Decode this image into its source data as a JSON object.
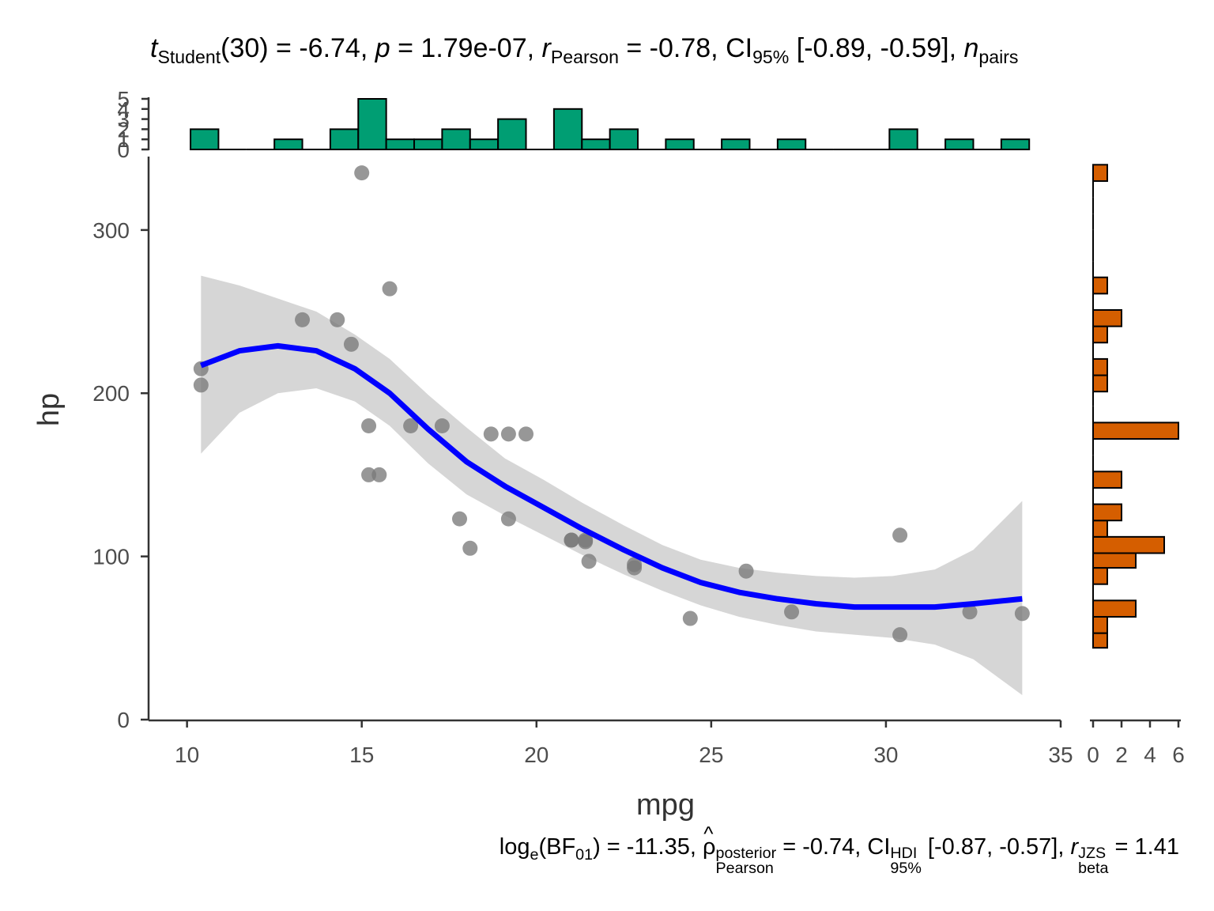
{
  "top_subtitle": {
    "t_symbol": "t",
    "t_sub": "Student",
    "t_stat": "(30) = -6.74, ",
    "p_symbol": "p",
    "p_val": " = 1.79e-07, ",
    "r_symbol": "r",
    "r_sub": "Pearson",
    "r_val": " = -0.78, CI",
    "ci_sub": "95%",
    "ci_val": " [-0.89, -0.59], ",
    "n_symbol": "n",
    "n_sub": "pairs"
  },
  "bottom_subtitle": {
    "log_text": "log",
    "log_sub": "e",
    "bf_text": "(BF",
    "bf_sub": "01",
    "bf_val": ") = -11.35, ",
    "rho_symbol": "ρ",
    "rho_sup": "posterior",
    "rho_sub": "Pearson",
    "rho_val": " = -0.74, CI",
    "ci_sup": "HDI",
    "ci_sub": "95%",
    "ci_val": " [-0.87, -0.57], ",
    "r_symbol": "r",
    "r_sup": "JZS",
    "r_sub": "beta",
    "r_val": " = 1.41"
  },
  "chart_data": [
    {
      "type": "scatter",
      "xlabel": "mpg",
      "ylabel": "hp",
      "xlim": [
        8.9,
        35
      ],
      "ylim": [
        0,
        345
      ],
      "x_ticks": [
        10,
        15,
        20,
        25,
        30,
        35
      ],
      "y_ticks": [
        0,
        100,
        200,
        300
      ],
      "grid": false,
      "point_color": "#7a7a7a",
      "points": [
        {
          "x": 21.0,
          "y": 110
        },
        {
          "x": 21.0,
          "y": 110
        },
        {
          "x": 22.8,
          "y": 93
        },
        {
          "x": 21.4,
          "y": 110
        },
        {
          "x": 18.7,
          "y": 175
        },
        {
          "x": 18.1,
          "y": 105
        },
        {
          "x": 14.3,
          "y": 245
        },
        {
          "x": 24.4,
          "y": 62
        },
        {
          "x": 22.8,
          "y": 95
        },
        {
          "x": 19.2,
          "y": 123
        },
        {
          "x": 17.8,
          "y": 123
        },
        {
          "x": 16.4,
          "y": 180
        },
        {
          "x": 17.3,
          "y": 180
        },
        {
          "x": 15.2,
          "y": 180
        },
        {
          "x": 10.4,
          "y": 205
        },
        {
          "x": 10.4,
          "y": 215
        },
        {
          "x": 14.7,
          "y": 230
        },
        {
          "x": 32.4,
          "y": 66
        },
        {
          "x": 30.4,
          "y": 52
        },
        {
          "x": 33.9,
          "y": 65
        },
        {
          "x": 21.5,
          "y": 97
        },
        {
          "x": 15.5,
          "y": 150
        },
        {
          "x": 15.2,
          "y": 150
        },
        {
          "x": 13.3,
          "y": 245
        },
        {
          "x": 19.2,
          "y": 175
        },
        {
          "x": 27.3,
          "y": 66
        },
        {
          "x": 26.0,
          "y": 91
        },
        {
          "x": 30.4,
          "y": 113
        },
        {
          "x": 15.8,
          "y": 264
        },
        {
          "x": 19.7,
          "y": 175
        },
        {
          "x": 15.0,
          "y": 335
        },
        {
          "x": 21.4,
          "y": 109
        }
      ],
      "smooth_color": "#0000ff",
      "band_color": "#d6d6d6",
      "smooth": [
        {
          "x": 10.4,
          "y": 217,
          "lo": 163,
          "hi": 272
        },
        {
          "x": 11.5,
          "y": 226,
          "lo": 188,
          "hi": 266
        },
        {
          "x": 12.6,
          "y": 229,
          "lo": 200,
          "hi": 258
        },
        {
          "x": 13.7,
          "y": 226,
          "lo": 203,
          "hi": 250
        },
        {
          "x": 14.8,
          "y": 215,
          "lo": 195,
          "hi": 236
        },
        {
          "x": 15.8,
          "y": 200,
          "lo": 180,
          "hi": 221
        },
        {
          "x": 16.9,
          "y": 178,
          "lo": 157,
          "hi": 199
        },
        {
          "x": 18.0,
          "y": 158,
          "lo": 138,
          "hi": 179
        },
        {
          "x": 19.1,
          "y": 143,
          "lo": 125,
          "hi": 160
        },
        {
          "x": 20.2,
          "y": 130,
          "lo": 113,
          "hi": 147
        },
        {
          "x": 21.3,
          "y": 117,
          "lo": 101,
          "hi": 133
        },
        {
          "x": 22.5,
          "y": 104,
          "lo": 89,
          "hi": 119
        },
        {
          "x": 23.6,
          "y": 93,
          "lo": 79,
          "hi": 107
        },
        {
          "x": 24.7,
          "y": 84,
          "lo": 70,
          "hi": 98
        },
        {
          "x": 25.8,
          "y": 78,
          "lo": 63,
          "hi": 93
        },
        {
          "x": 26.9,
          "y": 74,
          "lo": 58,
          "hi": 90
        },
        {
          "x": 28.0,
          "y": 71,
          "lo": 54,
          "hi": 88
        },
        {
          "x": 29.1,
          "y": 69,
          "lo": 52,
          "hi": 87
        },
        {
          "x": 30.2,
          "y": 69,
          "lo": 50,
          "hi": 88
        },
        {
          "x": 31.4,
          "y": 69,
          "lo": 46,
          "hi": 92
        },
        {
          "x": 32.5,
          "y": 71,
          "lo": 37,
          "hi": 104
        },
        {
          "x": 33.9,
          "y": 74,
          "lo": 15,
          "hi": 134
        }
      ]
    },
    {
      "type": "bar",
      "orientation": "vertical",
      "color": "#009e73",
      "y_ticks": [
        0,
        1,
        2,
        3,
        4,
        5
      ],
      "ylim": [
        0,
        5
      ],
      "bins": [
        {
          "x0": 10.1,
          "x1": 10.9,
          "count": 2
        },
        {
          "x0": 10.9,
          "x1": 11.7,
          "count": 0
        },
        {
          "x0": 11.7,
          "x1": 12.5,
          "count": 0
        },
        {
          "x0": 12.5,
          "x1": 13.3,
          "count": 1
        },
        {
          "x0": 13.3,
          "x1": 14.1,
          "count": 0
        },
        {
          "x0": 14.1,
          "x1": 14.9,
          "count": 2
        },
        {
          "x0": 14.9,
          "x1": 15.7,
          "count": 5
        },
        {
          "x0": 15.7,
          "x1": 16.5,
          "count": 1
        },
        {
          "x0": 16.5,
          "x1": 17.3,
          "count": 1
        },
        {
          "x0": 17.3,
          "x1": 18.1,
          "count": 2
        },
        {
          "x0": 18.1,
          "x1": 18.9,
          "count": 1
        },
        {
          "x0": 18.9,
          "x1": 19.7,
          "count": 3
        },
        {
          "x0": 19.7,
          "x1": 20.5,
          "count": 0
        },
        {
          "x0": 20.5,
          "x1": 21.3,
          "count": 4
        },
        {
          "x0": 21.3,
          "x1": 22.1,
          "count": 1
        },
        {
          "x0": 22.1,
          "x1": 22.9,
          "count": 2
        },
        {
          "x0": 22.9,
          "x1": 23.7,
          "count": 0
        },
        {
          "x0": 23.7,
          "x1": 24.5,
          "count": 1
        },
        {
          "x0": 24.5,
          "x1": 25.3,
          "count": 0
        },
        {
          "x0": 25.3,
          "x1": 26.1,
          "count": 1
        },
        {
          "x0": 26.1,
          "x1": 26.9,
          "count": 0
        },
        {
          "x0": 26.9,
          "x1": 27.7,
          "count": 1
        },
        {
          "x0": 27.7,
          "x1": 28.5,
          "count": 0
        },
        {
          "x0": 28.5,
          "x1": 29.3,
          "count": 0
        },
        {
          "x0": 29.3,
          "x1": 30.1,
          "count": 0
        },
        {
          "x0": 30.1,
          "x1": 30.9,
          "count": 2
        },
        {
          "x0": 30.9,
          "x1": 31.7,
          "count": 0
        },
        {
          "x0": 31.7,
          "x1": 32.5,
          "count": 1
        },
        {
          "x0": 32.5,
          "x1": 33.3,
          "count": 0
        },
        {
          "x0": 33.3,
          "x1": 34.1,
          "count": 1
        }
      ]
    },
    {
      "type": "bar",
      "orientation": "horizontal",
      "color": "#d55e00",
      "x_ticks": [
        0,
        2,
        4,
        6
      ],
      "xlim": [
        0,
        6
      ],
      "bins": [
        {
          "y0": 44,
          "y1": 53,
          "count": 1
        },
        {
          "y0": 53,
          "y1": 63,
          "count": 1
        },
        {
          "y0": 63,
          "y1": 73,
          "count": 3
        },
        {
          "y0": 73,
          "y1": 83,
          "count": 0
        },
        {
          "y0": 83,
          "y1": 93,
          "count": 1
        },
        {
          "y0": 93,
          "y1": 102,
          "count": 3
        },
        {
          "y0": 102,
          "y1": 112,
          "count": 5
        },
        {
          "y0": 112,
          "y1": 122,
          "count": 1
        },
        {
          "y0": 122,
          "y1": 132,
          "count": 2
        },
        {
          "y0": 132,
          "y1": 142,
          "count": 0
        },
        {
          "y0": 142,
          "y1": 152,
          "count": 2
        },
        {
          "y0": 152,
          "y1": 162,
          "count": 0
        },
        {
          "y0": 162,
          "y1": 172,
          "count": 0
        },
        {
          "y0": 172,
          "y1": 182,
          "count": 6
        },
        {
          "y0": 182,
          "y1": 192,
          "count": 0
        },
        {
          "y0": 192,
          "y1": 201,
          "count": 0
        },
        {
          "y0": 201,
          "y1": 211,
          "count": 1
        },
        {
          "y0": 211,
          "y1": 221,
          "count": 1
        },
        {
          "y0": 221,
          "y1": 231,
          "count": 0
        },
        {
          "y0": 231,
          "y1": 241,
          "count": 1
        },
        {
          "y0": 241,
          "y1": 251,
          "count": 2
        },
        {
          "y0": 251,
          "y1": 261,
          "count": 0
        },
        {
          "y0": 261,
          "y1": 271,
          "count": 1
        },
        {
          "y0": 271,
          "y1": 281,
          "count": 0
        },
        {
          "y0": 281,
          "y1": 290,
          "count": 0
        },
        {
          "y0": 290,
          "y1": 300,
          "count": 0
        },
        {
          "y0": 300,
          "y1": 310,
          "count": 0
        },
        {
          "y0": 310,
          "y1": 320,
          "count": 0
        },
        {
          "y0": 320,
          "y1": 330,
          "count": 0
        },
        {
          "y0": 330,
          "y1": 340,
          "count": 1
        }
      ]
    }
  ]
}
